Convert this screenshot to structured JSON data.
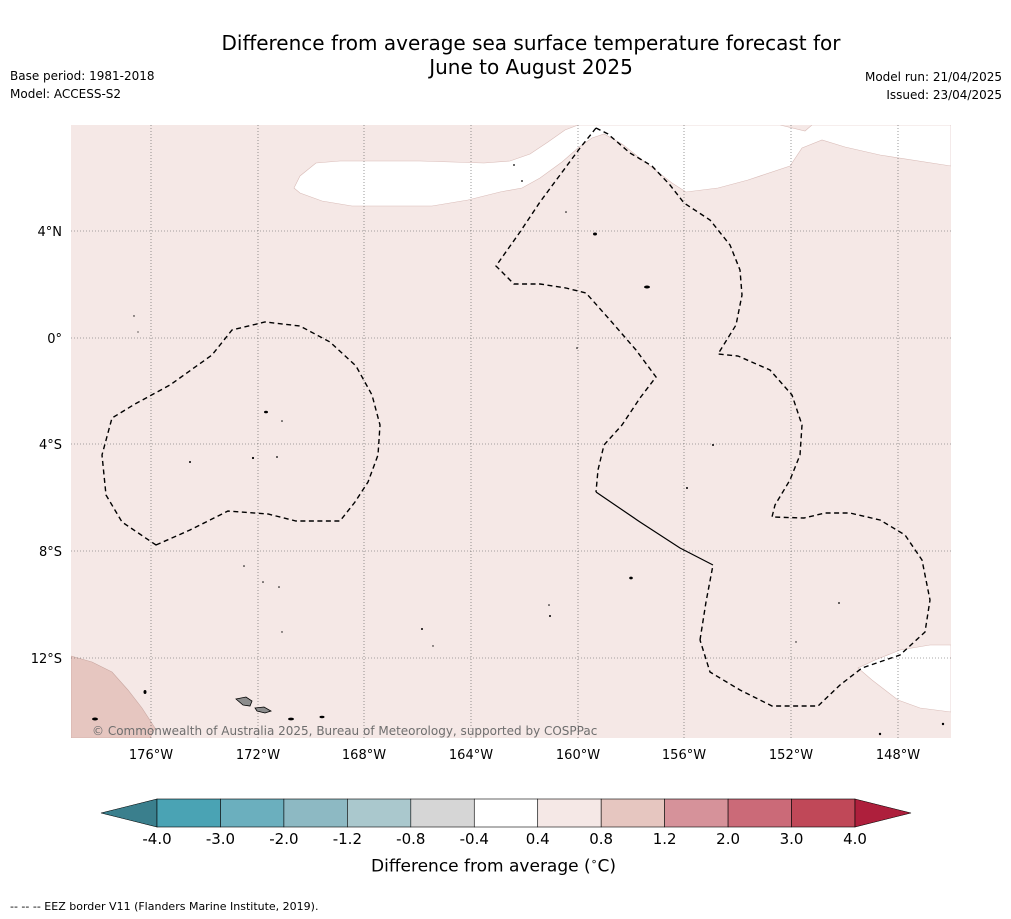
{
  "title": {
    "line1": "Difference from average sea surface temperature forecast for",
    "line2": "June to August 2025"
  },
  "left_meta": {
    "base_period": "Base period: 1981-2018",
    "model": "Model: ACCESS-S2"
  },
  "right_meta": {
    "model_run": "Model run: 21/04/2025",
    "issued": "Issued: 23/04/2025"
  },
  "map": {
    "copyright": "© Commonwealth of Australia 2025, Bureau of Meteorology, supported by COSPPac",
    "lat_labels": [
      "4°N",
      "0°",
      "4°S",
      "8°S",
      "12°S"
    ],
    "lon_labels": [
      "176°W",
      "172°W",
      "168°W",
      "164°W",
      "160°W",
      "156°W",
      "152°W",
      "148°W"
    ],
    "colors": {
      "anomaly_0p4_0p8": "#f5e8e6",
      "anomaly_0p8_1p2": "#e6c6c0",
      "neutral": "#ffffff",
      "eez_border": "#000000",
      "land": "#8c8c8c"
    }
  },
  "colorbar": {
    "tick_labels": [
      "-4.0",
      "-3.0",
      "-2.0",
      "-1.2",
      "-0.8",
      "-0.4",
      "0.4",
      "0.8",
      "1.2",
      "2.0",
      "3.0",
      "4.0"
    ],
    "colors": [
      "#3a7f8d",
      "#4aa3b4",
      "#6bafbe",
      "#8db9c3",
      "#aac8cd",
      "#d6d6d6",
      "#ffffff",
      "#f5e8e6",
      "#e6c6c0",
      "#d6929a",
      "#cb6a78",
      "#c04858",
      "#ae1f3c"
    ],
    "label": "Difference from average (",
    "label_unit": "∘",
    "label_tail": "C)"
  },
  "footer_note": "--  --  -- EEZ border V11 (Flanders Marine Institute, 2019)."
}
